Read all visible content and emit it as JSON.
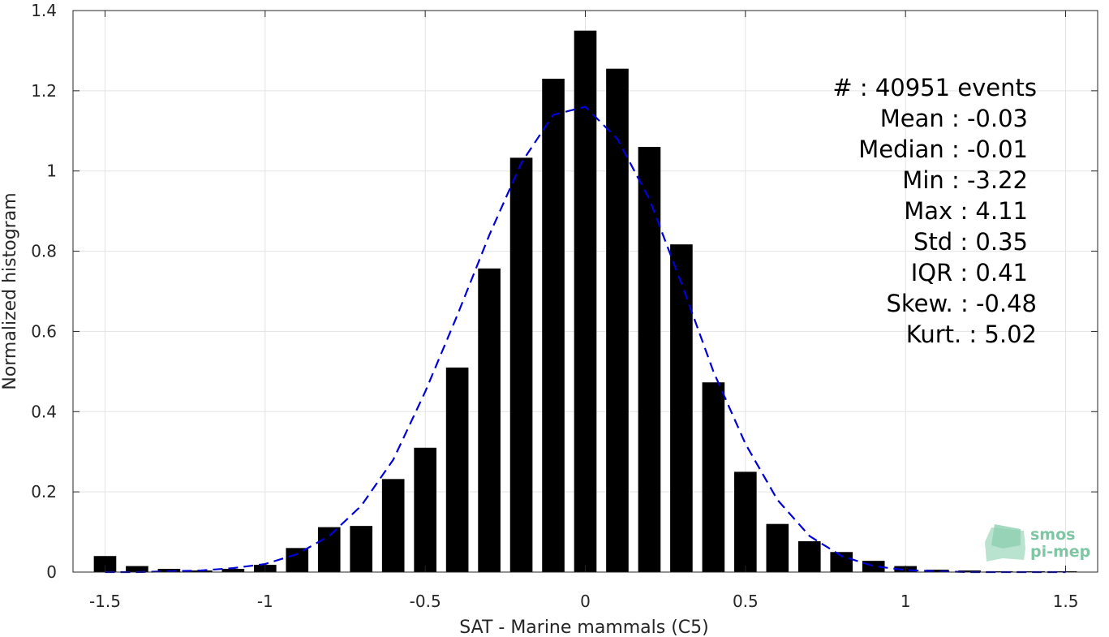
{
  "chart_data": {
    "type": "bar",
    "xlabel": "SAT - Marine mammals (C5)",
    "ylabel": "Normalized histogram",
    "xlim": [
      -1.6,
      1.6
    ],
    "ylim": [
      0,
      1.4
    ],
    "xticks": [
      -1.5,
      -1,
      -0.5,
      0,
      0.5,
      1,
      1.5
    ],
    "xtick_labels": [
      "-1.5",
      "-1",
      "-0.5",
      "0",
      "0.5",
      "1",
      "1.5"
    ],
    "yticks": [
      0,
      0.2,
      0.4,
      0.6,
      0.8,
      1,
      1.2,
      1.4
    ],
    "ytick_labels": [
      "0",
      "0.2",
      "0.4",
      "0.6",
      "0.8",
      "1",
      "1.2",
      "1.4"
    ],
    "grid": true,
    "bar_width": 0.07,
    "bar_color": "#000000",
    "fit_color": "#0000d8",
    "series": [
      {
        "kind": "bars",
        "x": [
          -1.5,
          -1.4,
          -1.3,
          -1.2,
          -1.1,
          -1.0,
          -0.9,
          -0.8,
          -0.7,
          -0.6,
          -0.5,
          -0.4,
          -0.3,
          -0.2,
          -0.1,
          0.0,
          0.1,
          0.2,
          0.3,
          0.4,
          0.5,
          0.6,
          0.7,
          0.8,
          0.9,
          1.0,
          1.1,
          1.2,
          1.3,
          1.4,
          1.5
        ],
        "values": [
          0.04,
          0.015,
          0.008,
          0.004,
          0.008,
          0.018,
          0.06,
          0.112,
          0.115,
          0.232,
          0.31,
          0.51,
          0.757,
          1.033,
          1.23,
          1.35,
          1.255,
          1.06,
          0.817,
          0.473,
          0.25,
          0.12,
          0.077,
          0.05,
          0.028,
          0.015,
          0.006,
          0.004,
          0.002,
          0.002,
          0.002
        ]
      },
      {
        "kind": "fit-line",
        "style": "dashed",
        "x": [
          -1.5,
          -1.4,
          -1.3,
          -1.2,
          -1.1,
          -1.0,
          -0.9,
          -0.8,
          -0.7,
          -0.6,
          -0.5,
          -0.4,
          -0.3,
          -0.2,
          -0.1,
          0.0,
          0.1,
          0.2,
          0.3,
          0.4,
          0.5,
          0.6,
          0.7,
          0.8,
          0.9,
          1.0,
          1.1,
          1.2,
          1.3,
          1.4,
          1.5
        ],
        "values": [
          0.0,
          0.0,
          0.002,
          0.004,
          0.01,
          0.02,
          0.045,
          0.09,
          0.165,
          0.28,
          0.45,
          0.64,
          0.84,
          1.02,
          1.14,
          1.16,
          1.08,
          0.93,
          0.72,
          0.5,
          0.32,
          0.18,
          0.09,
          0.04,
          0.015,
          0.005,
          0.002,
          0.0,
          0.0,
          0.0,
          0.0
        ]
      }
    ],
    "annotations": [
      "#  : 40951 events",
      "Mean : -0.03",
      "Median : -0.01",
      "Min : -3.22",
      "Max : 4.11",
      "Std : 0.35",
      "IQR : 0.41",
      "Skew. : -0.48",
      "Kurt. : 5.02"
    ]
  },
  "logo": {
    "line1": "smos",
    "line2": "pi-mep"
  }
}
